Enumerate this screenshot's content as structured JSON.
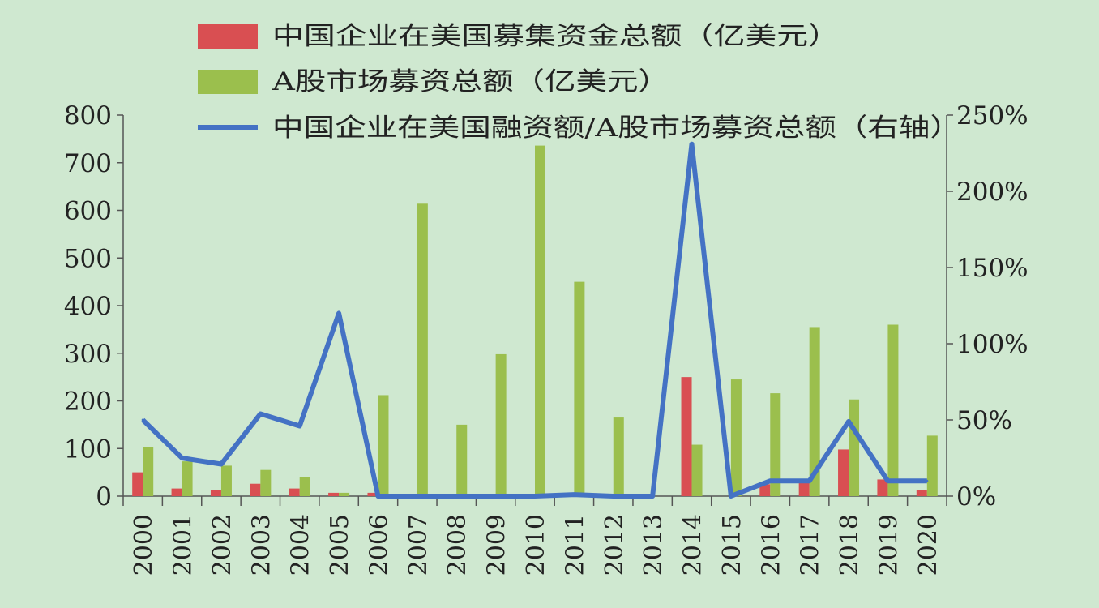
{
  "chart_data": {
    "type": "bar",
    "background": "#cfe8d0",
    "categories": [
      "2000",
      "2001",
      "2002",
      "2003",
      "2004",
      "2005",
      "2006",
      "2007",
      "2008",
      "2009",
      "2010",
      "2011",
      "2012",
      "2013",
      "2014",
      "2015",
      "2016",
      "2017",
      "2018",
      "2019",
      "2020"
    ],
    "series": [
      {
        "name": "中国企业在美国募集资金总额（亿美元）",
        "type": "bar",
        "axis": "left",
        "color": "#d94f52",
        "values": [
          50,
          16,
          12,
          26,
          16,
          7,
          7,
          0,
          0,
          0,
          0,
          5,
          0,
          0,
          250,
          0,
          25,
          30,
          98,
          35,
          12
        ]
      },
      {
        "name": "A股市场募资总额（亿美元）",
        "type": "bar",
        "axis": "left",
        "color": "#9bbf4d",
        "values": [
          103,
          73,
          64,
          55,
          40,
          7,
          212,
          614,
          150,
          298,
          736,
          450,
          165,
          0,
          108,
          245,
          216,
          355,
          203,
          360,
          127
        ]
      },
      {
        "name": "中国企业在美国融资额/A股市场募资总额（右轴）",
        "type": "line",
        "axis": "right",
        "color": "#4472c4",
        "values": [
          0.5,
          0.25,
          0.21,
          0.54,
          0.46,
          1.2,
          0.0,
          0.0,
          0.0,
          0.0,
          0.0,
          0.01,
          0.0,
          0.0,
          2.31,
          0.0,
          0.1,
          0.1,
          0.49,
          0.1,
          0.1
        ]
      }
    ],
    "ylim": [
      0,
      800
    ],
    "yticks": [
      "0",
      "100",
      "200",
      "300",
      "400",
      "500",
      "600",
      "700",
      "800"
    ],
    "y2lim": [
      0,
      2.5
    ],
    "y2ticks": [
      "0%",
      "50%",
      "100%",
      "150%",
      "200%",
      "250%"
    ],
    "legend": "top"
  }
}
